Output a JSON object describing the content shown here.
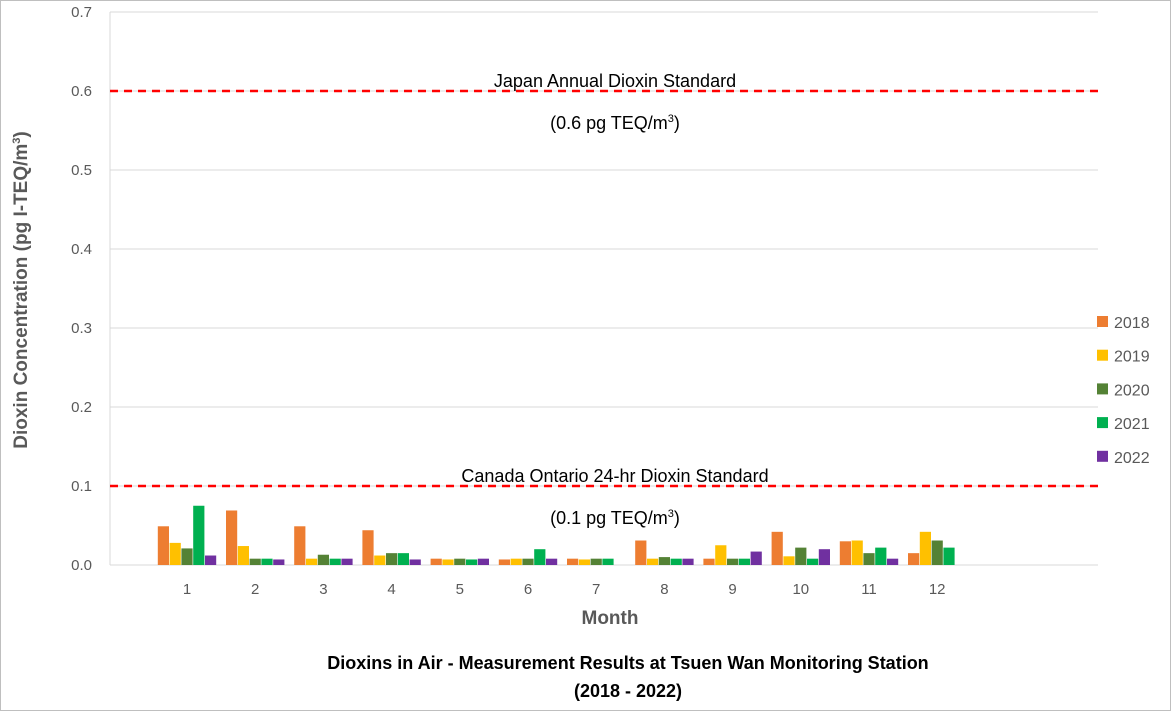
{
  "chart_data": {
    "type": "bar",
    "title_line1": "Dioxins in Air - Measurement Results at Tsuen Wan Monitoring Station",
    "title_line2": "(2018 - 2022)",
    "xlabel": "Month",
    "ylabel_main": "Dioxin Concentration (pg I-TEQ/m",
    "ylabel_sup": "3",
    "ylabel_close": ")",
    "ylim": [
      0,
      0.7
    ],
    "yticks": [
      "0.0",
      "0.1",
      "0.2",
      "0.3",
      "0.4",
      "0.5",
      "0.6",
      "0.7"
    ],
    "grid": "horizontal",
    "legend_position": "right",
    "categories": [
      "1",
      "2",
      "3",
      "4",
      "5",
      "6",
      "7",
      "8",
      "9",
      "10",
      "11",
      "12"
    ],
    "series": [
      {
        "name": "2018",
        "color": "#ED7D31",
        "values": [
          0.049,
          0.069,
          0.049,
          0.044,
          0.008,
          0.007,
          0.008,
          0.031,
          0.008,
          0.042,
          0.03,
          0.015
        ]
      },
      {
        "name": "2019",
        "color": "#FFC000",
        "values": [
          0.028,
          0.024,
          0.008,
          0.012,
          0.007,
          0.008,
          0.007,
          0.008,
          0.025,
          0.011,
          0.031,
          0.042
        ]
      },
      {
        "name": "2020",
        "color": "#548235",
        "values": [
          0.021,
          0.008,
          0.013,
          0.015,
          0.008,
          0.008,
          0.008,
          0.01,
          0.008,
          0.022,
          0.015,
          0.031
        ]
      },
      {
        "name": "2021",
        "color": "#00B050",
        "values": [
          0.075,
          0.008,
          0.008,
          0.015,
          0.007,
          0.02,
          0.008,
          0.008,
          0.008,
          0.008,
          0.022,
          0.022
        ]
      },
      {
        "name": "2022",
        "color": "#7030A0",
        "values": [
          0.012,
          0.007,
          0.008,
          0.007,
          0.008,
          0.008,
          null,
          0.008,
          0.017,
          0.02,
          0.008,
          null
        ]
      }
    ],
    "reference_lines": [
      {
        "value": 0.6,
        "color": "#FF0000",
        "label": "Japan Annual Dioxin Standard",
        "sublabel_main": "(0.6 pg TEQ/m",
        "sublabel_sup": "3",
        "sublabel_close": ")"
      },
      {
        "value": 0.1,
        "color": "#FF0000",
        "label": "Canada Ontario 24-hr Dioxin Standard",
        "sublabel_main": "(0.1 pg TEQ/m",
        "sublabel_sup": "3",
        "sublabel_close": ")"
      }
    ]
  }
}
